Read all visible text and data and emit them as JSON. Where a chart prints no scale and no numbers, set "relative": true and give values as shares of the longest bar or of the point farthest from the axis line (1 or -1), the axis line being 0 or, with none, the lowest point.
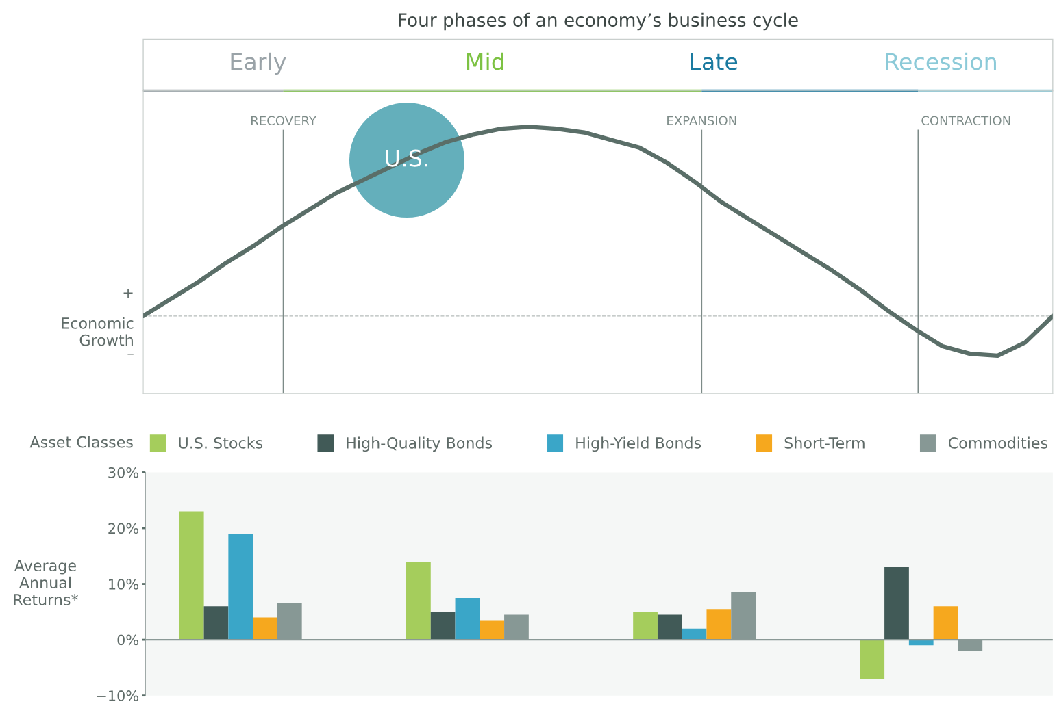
{
  "chart_data": [
    {
      "type": "line",
      "title": "Four phases of an economy’s business cycle",
      "ylabel": "Economic Growth",
      "relative": true,
      "categories": [
        null,
        null,
        null,
        null,
        null,
        null,
        null,
        null,
        null,
        null,
        null,
        null,
        null,
        null,
        null,
        null,
        null,
        null,
        null,
        null,
        null,
        null,
        null,
        null,
        null,
        null,
        null,
        null,
        null,
        null,
        null,
        null,
        null,
        null
      ],
      "series": [
        {
          "color": "#5a6e68",
          "values": [
            0,
            0.09,
            0.18,
            0.28,
            0.37,
            0.47,
            0.56,
            0.65,
            0.72,
            0.79,
            0.86,
            0.92,
            0.96,
            0.99,
            1,
            0.99,
            0.97,
            0.93,
            0.89,
            0.81,
            0.71,
            0.6,
            0.51,
            0.42,
            0.33,
            0.24,
            0.14,
            0.03,
            -0.07,
            -0.16,
            -0.2,
            -0.21,
            -0.14,
            0
          ]
        }
      ],
      "ref_lines": [
        {
          "axis": "y",
          "value": 0,
          "color": "#b5bcba",
          "line_style": "dashed"
        }
      ],
      "annotations": [
        "Early",
        "Mid",
        "Late",
        "Recession",
        "RECOVERY",
        "EXPANSION",
        "CONTRACTION",
        "U.S.",
        "+",
        "–"
      ],
      "tick_labels": false
    },
    {
      "type": "bar",
      "ylabel": "Average Annual Returns*",
      "legend_title": "Asset Classes",
      "categories": [
        null,
        null,
        null,
        null
      ],
      "series": [
        {
          "name": "U.S. Stocks",
          "color": "#a5cd5c",
          "values": [
            23,
            14,
            5,
            -7
          ]
        },
        {
          "name": "High-Quality Bonds",
          "color": "#415a57",
          "values": [
            6,
            5,
            4.5,
            13
          ]
        },
        {
          "name": "High-Yield Bonds",
          "color": "#3aa6c8",
          "values": [
            19,
            7.5,
            2,
            -1
          ]
        },
        {
          "name": "Short-Term",
          "color": "#f6a81e",
          "values": [
            4,
            3.5,
            5.5,
            6
          ]
        },
        {
          "name": "Commodities",
          "color": "#879895",
          "values": [
            6.5,
            4.5,
            8.5,
            -2
          ]
        }
      ],
      "ylim": [
        -10,
        30
      ],
      "yticks": [
        {
          "value": -10,
          "label": "−10%"
        },
        {
          "value": 0,
          "label": "0%"
        },
        {
          "value": 10,
          "label": "10%"
        },
        {
          "value": 20,
          "label": "20%"
        },
        {
          "value": 30,
          "label": "30%"
        }
      ],
      "ref_lines": [
        {
          "axis": "y",
          "value": 0,
          "color": "#8a9996"
        }
      ],
      "legend": "top",
      "tick_labels": "y"
    }
  ]
}
